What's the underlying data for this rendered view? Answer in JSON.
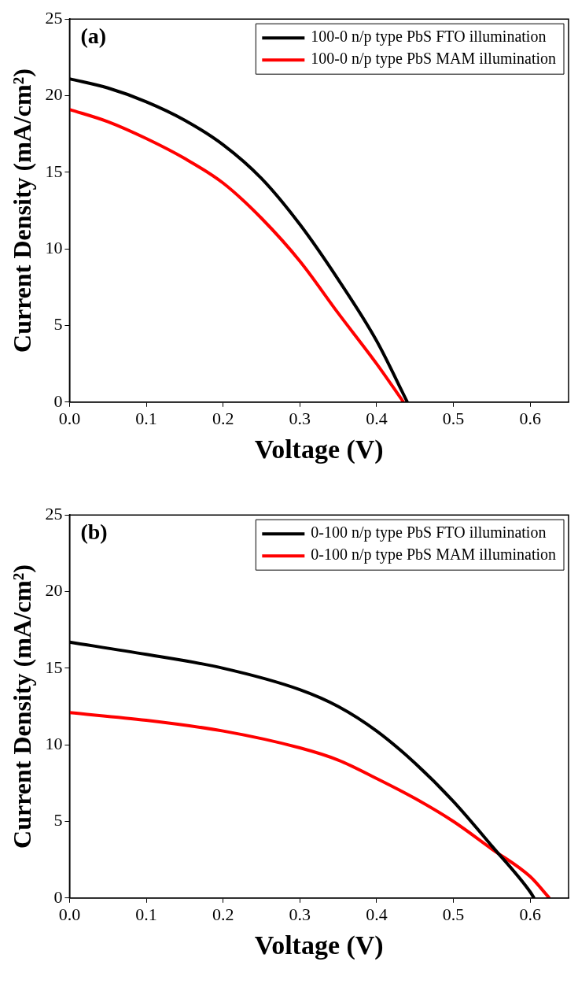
{
  "chart_data": [
    {
      "type": "line",
      "annotations": [
        "(a)"
      ],
      "xlabel": "Voltage (V)",
      "ylabel": "Current Density (mA/cm²)",
      "xlim": [
        0,
        0.65
      ],
      "xticks": [
        {
          "value": 0,
          "label": "0.0"
        },
        0.1,
        0.2,
        0.3,
        0.4,
        0.5,
        0.6
      ],
      "ylim": [
        0,
        25
      ],
      "yticks": [
        0,
        5,
        10,
        15,
        20,
        25
      ],
      "grid": false,
      "legend": "top right",
      "marker": "none",
      "line_style": "solid",
      "series": [
        {
          "name": "100-0 n/p type PbS FTO illumination",
          "color": "#000000",
          "x": [
            0,
            0.05,
            0.1,
            0.15,
            0.2,
            0.25,
            0.3,
            0.35,
            0.4,
            0.44
          ],
          "values": [
            21.1,
            20.5,
            19.6,
            18.4,
            16.8,
            14.6,
            11.6,
            8.0,
            4.0,
            0
          ]
        },
        {
          "name": "100-0 n/p type PbS MAM illumination",
          "color": "#ff0000",
          "x": [
            0,
            0.05,
            0.1,
            0.15,
            0.2,
            0.25,
            0.3,
            0.35,
            0.4,
            0.435
          ],
          "values": [
            19.1,
            18.3,
            17.2,
            15.9,
            14.3,
            12.0,
            9.2,
            5.8,
            2.5,
            0
          ]
        }
      ]
    },
    {
      "type": "line",
      "annotations": [
        "(b)"
      ],
      "xlabel": "Voltage (V)",
      "ylabel": "Current Density (mA/cm²)",
      "xlim": [
        0,
        0.65
      ],
      "xticks": [
        {
          "value": 0,
          "label": "0.0"
        },
        0.1,
        0.2,
        0.3,
        0.4,
        0.5,
        0.6
      ],
      "ylim": [
        0,
        25
      ],
      "yticks": [
        0,
        5,
        10,
        15,
        20,
        25
      ],
      "grid": false,
      "legend": "top right",
      "marker": "none",
      "line_style": "solid",
      "series": [
        {
          "name": "0-100 n/p type PbS FTO illumination",
          "color": "#000000",
          "x": [
            0,
            0.1,
            0.2,
            0.3,
            0.35,
            0.4,
            0.45,
            0.5,
            0.55,
            0.6,
            0.605
          ],
          "values": [
            16.7,
            15.9,
            15.0,
            13.6,
            12.5,
            10.9,
            8.8,
            6.3,
            3.4,
            0.4,
            0
          ]
        },
        {
          "name": "0-100 n/p type PbS MAM illumination",
          "color": "#ff0000",
          "x": [
            0,
            0.1,
            0.2,
            0.3,
            0.35,
            0.4,
            0.45,
            0.5,
            0.55,
            0.6,
            0.625
          ],
          "values": [
            12.1,
            11.6,
            10.9,
            9.8,
            9.0,
            7.8,
            6.5,
            5.0,
            3.2,
            1.4,
            0
          ]
        }
      ]
    }
  ]
}
